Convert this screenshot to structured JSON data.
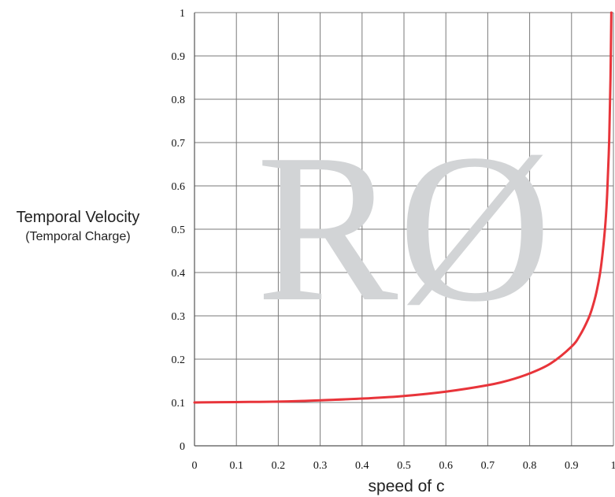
{
  "chart_data": {
    "type": "line",
    "xlabel": "speed of c",
    "ylabel": "Temporal Velocity",
    "ylabel_sub": "(Temporal Charge)",
    "xlim": [
      0,
      1
    ],
    "ylim": [
      0,
      1
    ],
    "grid": true,
    "x_ticks": [
      "0",
      "0.1",
      "0.2",
      "0.3",
      "0.4",
      "0.5",
      "0.6",
      "0.7",
      "0.8",
      "0.9",
      "1"
    ],
    "y_ticks": [
      "0",
      "0.1",
      "0.2",
      "0.3",
      "0.4",
      "0.5",
      "0.6",
      "0.7",
      "0.8",
      "0.9",
      "1"
    ],
    "watermark": "RØ",
    "series": [
      {
        "color": "#e8343a",
        "x": [
          0,
          0.1,
          0.2,
          0.3,
          0.4,
          0.5,
          0.6,
          0.7,
          0.75,
          0.8,
          0.85,
          0.9,
          0.92,
          0.94,
          0.95,
          0.96,
          0.97,
          0.98,
          0.985,
          0.99,
          0.993,
          0.995
        ],
        "y": [
          0.1,
          0.101,
          0.102,
          0.105,
          0.109,
          0.115,
          0.125,
          0.14,
          0.151,
          0.167,
          0.19,
          0.229,
          0.255,
          0.293,
          0.32,
          0.357,
          0.411,
          0.503,
          0.58,
          0.709,
          0.847,
          1.0
        ]
      }
    ]
  }
}
